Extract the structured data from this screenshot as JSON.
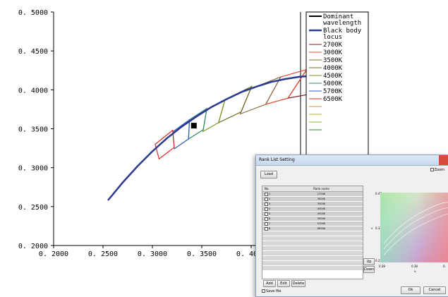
{
  "chart_data": {
    "type": "line",
    "xlim": [
      0.2,
      0.45
    ],
    "ylim": [
      0.2,
      0.5
    ],
    "x_ticks": [
      0.2,
      0.25,
      0.3,
      0.35,
      0.4
    ],
    "x_tick_labels": [
      "0. 2000",
      "0. 2500",
      "0. 3000",
      "0. 3500",
      "0. 4000"
    ],
    "y_ticks": [
      0.2,
      0.25,
      0.3,
      0.35,
      0.4,
      0.45,
      0.5
    ],
    "y_tick_labels": [
      "0. 2000",
      "0. 2500",
      "0. 3000",
      "0. 3500",
      "0. 4000",
      "0. 4500",
      "0. 5000"
    ],
    "grid": false,
    "legend_position": "right",
    "black_body_locus": {
      "name": "Black body\nlocus",
      "color": "#2b3a8f",
      "x": [
        0.255,
        0.27,
        0.285,
        0.3,
        0.315,
        0.33,
        0.345,
        0.36,
        0.375,
        0.39,
        0.405,
        0.42,
        0.435,
        0.45,
        0.465,
        0.477
      ],
      "y": [
        0.258,
        0.281,
        0.302,
        0.321,
        0.338,
        0.353,
        0.366,
        0.378,
        0.388,
        0.397,
        0.404,
        0.41,
        0.414,
        0.417,
        0.418,
        0.415
      ]
    },
    "dominant_point": {
      "name": "Dominant\nwavelength",
      "x": 0.342,
      "y": 0.354,
      "color": "#000000"
    },
    "quadrangles": [
      {
        "name": "2700K",
        "color": "#7b1f1f",
        "points": [
          [
            0.4813,
            0.4319
          ],
          [
            0.4562,
            0.426
          ],
          [
            0.4373,
            0.3893
          ],
          [
            0.4593,
            0.3944
          ]
        ]
      },
      {
        "name": "3000K",
        "color": "#e8452f",
        "points": [
          [
            0.4562,
            0.426
          ],
          [
            0.4299,
            0.4165
          ],
          [
            0.4147,
            0.3814
          ],
          [
            0.4373,
            0.3893
          ]
        ]
      },
      {
        "name": "3500K",
        "color": "#8b6b3f",
        "points": [
          [
            0.4299,
            0.4165
          ],
          [
            0.3996,
            0.4015
          ],
          [
            0.3889,
            0.369
          ],
          [
            0.4147,
            0.3814
          ]
        ]
      },
      {
        "name": "4000K",
        "color": "#6b6b1f",
        "points": [
          [
            0.4006,
            0.4044
          ],
          [
            0.3736,
            0.3874
          ],
          [
            0.367,
            0.3578
          ],
          [
            0.3898,
            0.3716
          ]
        ]
      },
      {
        "name": "4500K",
        "color": "#7a9a2a",
        "points": [
          [
            0.3736,
            0.3874
          ],
          [
            0.3548,
            0.3736
          ],
          [
            0.3512,
            0.3465
          ],
          [
            0.367,
            0.3578
          ]
        ]
      },
      {
        "name": "5000K",
        "color": "#2f8a6f",
        "points": [
          [
            0.3551,
            0.376
          ],
          [
            0.3376,
            0.3616
          ],
          [
            0.3366,
            0.3369
          ],
          [
            0.3515,
            0.3487
          ]
        ]
      },
      {
        "name": "5700K",
        "color": "#2c5fbf",
        "points": [
          [
            0.3376,
            0.3616
          ],
          [
            0.3207,
            0.3462
          ],
          [
            0.3222,
            0.3243
          ],
          [
            0.3366,
            0.3369
          ]
        ]
      },
      {
        "name": "6500K",
        "color": "#e02a2a",
        "points": [
          [
            0.3205,
            0.3481
          ],
          [
            0.3028,
            0.33
          ],
          [
            0.3068,
            0.3113
          ],
          [
            0.3221,
            0.3261
          ]
        ]
      }
    ],
    "legend_extra_colors": [
      "#f08a2a",
      "#c9b21a",
      "#8fc43a",
      "#2a8a3a"
    ]
  },
  "dialog": {
    "title": "Rank List Setting",
    "load_label": "Load",
    "zoom_label": "Zoom",
    "columns": [
      "No.",
      "Rank name"
    ],
    "rows": [
      {
        "no": "1",
        "name": "2700K"
      },
      {
        "no": "2",
        "name": "3000K"
      },
      {
        "no": "3",
        "name": "3500K"
      },
      {
        "no": "4",
        "name": "4000K"
      },
      {
        "no": "5",
        "name": "4500K"
      },
      {
        "no": "6",
        "name": "5000K"
      },
      {
        "no": "7",
        "name": "5700K"
      },
      {
        "no": "8",
        "name": "6500K"
      }
    ],
    "add_label": "Add",
    "edit_label": "Edit",
    "delete_label": "Delete",
    "up_label": "Up",
    "down_label": "Down",
    "save_file_label": "Save file",
    "ok_label": "Ok",
    "cancel_label": "Cancel",
    "mini_y_ticks": [
      "0.47",
      "0.37",
      "0.27"
    ],
    "mini_y_label": "v",
    "mini_x_ticks": [
      "0.28",
      "0.38",
      "0."
    ],
    "mini_x_label": "u"
  }
}
